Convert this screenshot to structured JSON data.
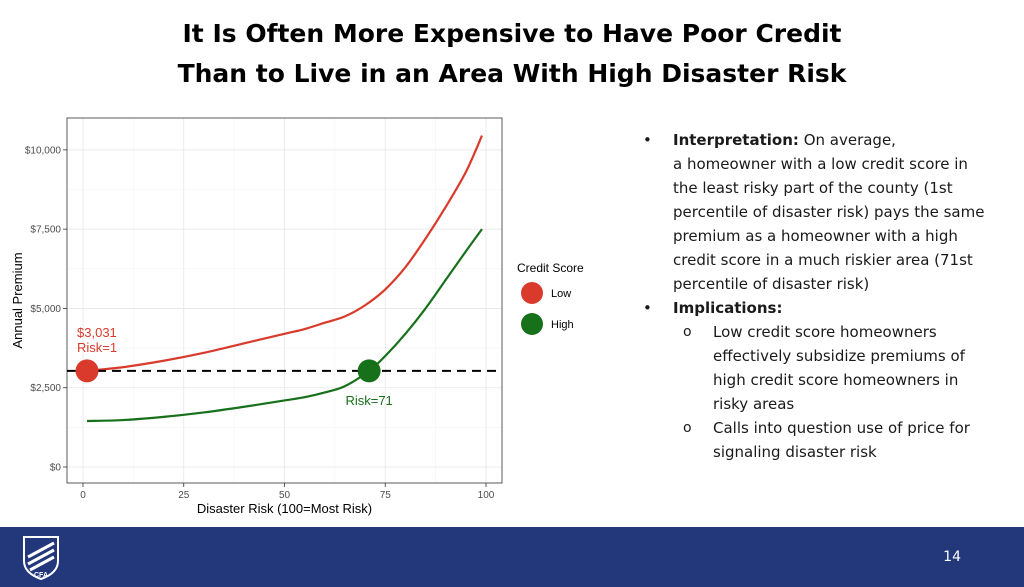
{
  "slide": {
    "title_line1": "It Is Often More Expensive to Have Poor Credit",
    "title_line2": "Than to Live in an Area With High Disaster Risk",
    "page_number": "14",
    "logo_text": "CFA"
  },
  "bullets": {
    "interpretation_label": "Interpretation:",
    "interpretation_lines": [
      "On average,",
      "a homeowner with a low credit score in",
      "the least risky part of the county (1st",
      "percentile of disaster risk) pays the same",
      "premium as a homeowner with a high",
      "credit score in a much riskier area (71st",
      "percentile of disaster risk)"
    ],
    "implications_label": "Implications:",
    "sub_items": [
      [
        "Low credit score homeowners",
        "effectively subsidize premiums of",
        "high credit score homeowners in",
        "risky areas"
      ],
      [
        "Calls into question use of price for",
        "signaling disaster risk"
      ]
    ]
  },
  "chart_data": {
    "type": "line",
    "xlabel": "Disaster Risk (100=Most Risk)",
    "ylabel": "Annual Premium",
    "xlim": [
      0,
      100
    ],
    "ylim": [
      0,
      10500
    ],
    "x_ticks": [
      0,
      25,
      50,
      75,
      100
    ],
    "x_tick_labels": [
      "0",
      "25",
      "50",
      "75",
      "100"
    ],
    "y_ticks": [
      0,
      2500,
      5000,
      7500,
      10000
    ],
    "y_tick_labels": [
      "$0",
      "$2,500",
      "$5,000",
      "$7,500",
      "$10,000"
    ],
    "grid": true,
    "legend": {
      "title": "Credit Score",
      "position": "right"
    },
    "series": [
      {
        "name": "Low",
        "color": "#d93a2b",
        "x": [
          1,
          10,
          20,
          30,
          40,
          50,
          55,
          60,
          65,
          70,
          75,
          80,
          85,
          90,
          95,
          99
        ],
        "y": [
          3031,
          3150,
          3350,
          3600,
          3900,
          4200,
          4350,
          4550,
          4750,
          5100,
          5600,
          6300,
          7200,
          8200,
          9300,
          10450
        ]
      },
      {
        "name": "High",
        "color": "#17701a",
        "x": [
          1,
          10,
          20,
          30,
          40,
          50,
          55,
          60,
          65,
          71,
          75,
          80,
          85,
          90,
          95,
          99
        ],
        "y": [
          1450,
          1480,
          1580,
          1720,
          1900,
          2100,
          2200,
          2350,
          2550,
          3031,
          3500,
          4200,
          5000,
          5900,
          6800,
          7500
        ]
      }
    ],
    "reference_line": {
      "y": 3031,
      "style": "dashed"
    },
    "annotations": [
      {
        "series": "Low",
        "x": 1,
        "y": 3031,
        "text_line1": "$3,031",
        "text_line2": "Risk=1"
      },
      {
        "series": "High",
        "x": 71,
        "y": 3031,
        "text_line1": "Risk=71"
      }
    ]
  }
}
